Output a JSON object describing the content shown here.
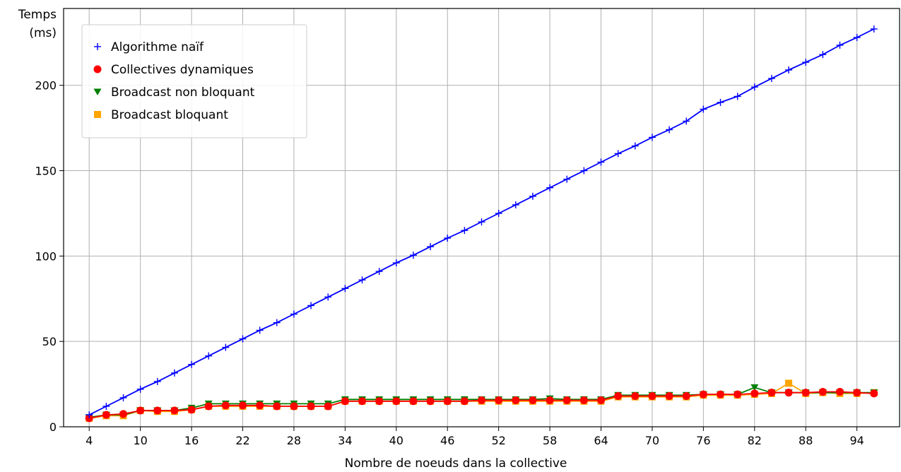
{
  "chart_data": {
    "type": "line",
    "title": "",
    "xlabel": "Nombre de noeuds dans la collective",
    "ylabel_lines": [
      "Temps",
      "(ms)"
    ],
    "xlim": [
      1,
      99
    ],
    "ylim": [
      0,
      245
    ],
    "xticks": [
      4,
      10,
      16,
      22,
      28,
      34,
      40,
      46,
      52,
      58,
      64,
      70,
      76,
      82,
      88,
      94
    ],
    "yticks": [
      0,
      50,
      100,
      150,
      200
    ],
    "grid": true,
    "legend_position": "top-left",
    "x": [
      4,
      6,
      8,
      10,
      12,
      14,
      16,
      18,
      20,
      22,
      24,
      26,
      28,
      30,
      32,
      34,
      36,
      38,
      40,
      42,
      44,
      46,
      48,
      50,
      52,
      54,
      56,
      58,
      60,
      62,
      64,
      66,
      68,
      70,
      72,
      74,
      76,
      78,
      80,
      82,
      84,
      86,
      88,
      90,
      92,
      94,
      96
    ],
    "series": [
      {
        "name": "Algorithme naïf",
        "color": "#0000ff",
        "marker": "plus",
        "values": [
          7,
          12,
          17,
          22,
          26.5,
          31.5,
          36.5,
          41.5,
          46.5,
          51.5,
          56.5,
          61,
          66,
          71,
          76,
          81,
          86,
          91,
          96,
          100.5,
          105.5,
          110.5,
          115,
          120,
          125,
          130,
          135,
          140,
          145,
          150,
          155,
          160,
          164.5,
          169.5,
          174,
          179,
          186,
          190,
          193.5,
          199,
          204,
          209,
          213.5,
          218,
          223.5,
          228,
          233
        ]
      },
      {
        "name": "Collectives dynamiques",
        "color": "#ff0000",
        "marker": "circle",
        "values": [
          5,
          7,
          7.5,
          9.5,
          9.5,
          9.5,
          10,
          12,
          12.5,
          12.5,
          12.5,
          12,
          12,
          12,
          12,
          15,
          15,
          15,
          15,
          15,
          15,
          15,
          15,
          15.5,
          15.5,
          15.5,
          15.5,
          15.5,
          15.5,
          15.5,
          15.5,
          18,
          18,
          18,
          18,
          18,
          19,
          19,
          19,
          19.5,
          20,
          20,
          20,
          20.5,
          20.5,
          20,
          19.5
        ]
      },
      {
        "name": "Broadcast non bloquant",
        "color": "#008000",
        "marker": "triangle-down",
        "values": [
          5.5,
          7,
          7,
          9.5,
          9.5,
          9.5,
          11,
          13.5,
          13.5,
          13.5,
          13.5,
          13.5,
          13.5,
          13.5,
          13.5,
          16,
          16,
          16,
          16,
          16,
          16,
          16,
          16,
          16,
          16,
          16,
          16,
          16.5,
          16,
          16,
          16,
          18.5,
          18.5,
          18.5,
          18.5,
          18.5,
          19,
          19,
          19,
          23,
          20,
          20,
          20,
          20,
          20,
          20,
          20
        ]
      },
      {
        "name": "Broadcast bloquant",
        "color": "#ffa500",
        "marker": "square",
        "values": [
          5,
          6.5,
          6.5,
          9.5,
          9,
          9,
          10,
          12,
          12,
          12,
          12,
          12,
          12,
          12,
          12,
          15,
          15,
          15,
          15,
          15,
          15,
          15,
          15,
          15,
          15,
          15,
          15,
          15,
          15,
          15,
          15,
          17.5,
          17.5,
          17.5,
          17.5,
          17.5,
          18.5,
          18.5,
          18.5,
          19,
          19.5,
          25.5,
          19.5,
          20,
          19.5,
          19.5,
          20
        ]
      }
    ]
  }
}
